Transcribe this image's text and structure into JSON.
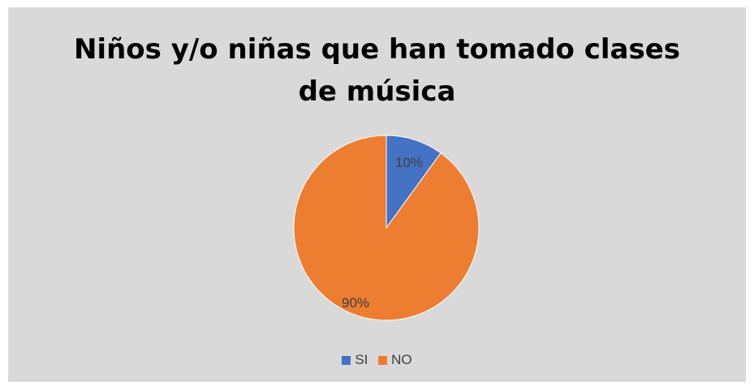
{
  "chart_data": {
    "type": "pie",
    "title_lines": [
      "Niños y/o niñas que han tomado clases",
      "de música"
    ],
    "categories": [
      "SI",
      "NO"
    ],
    "values": [
      10,
      90
    ],
    "labels": [
      "10%",
      "90%"
    ],
    "colors": [
      "#4472c4",
      "#ed7d31"
    ],
    "legend_position": "bottom"
  }
}
